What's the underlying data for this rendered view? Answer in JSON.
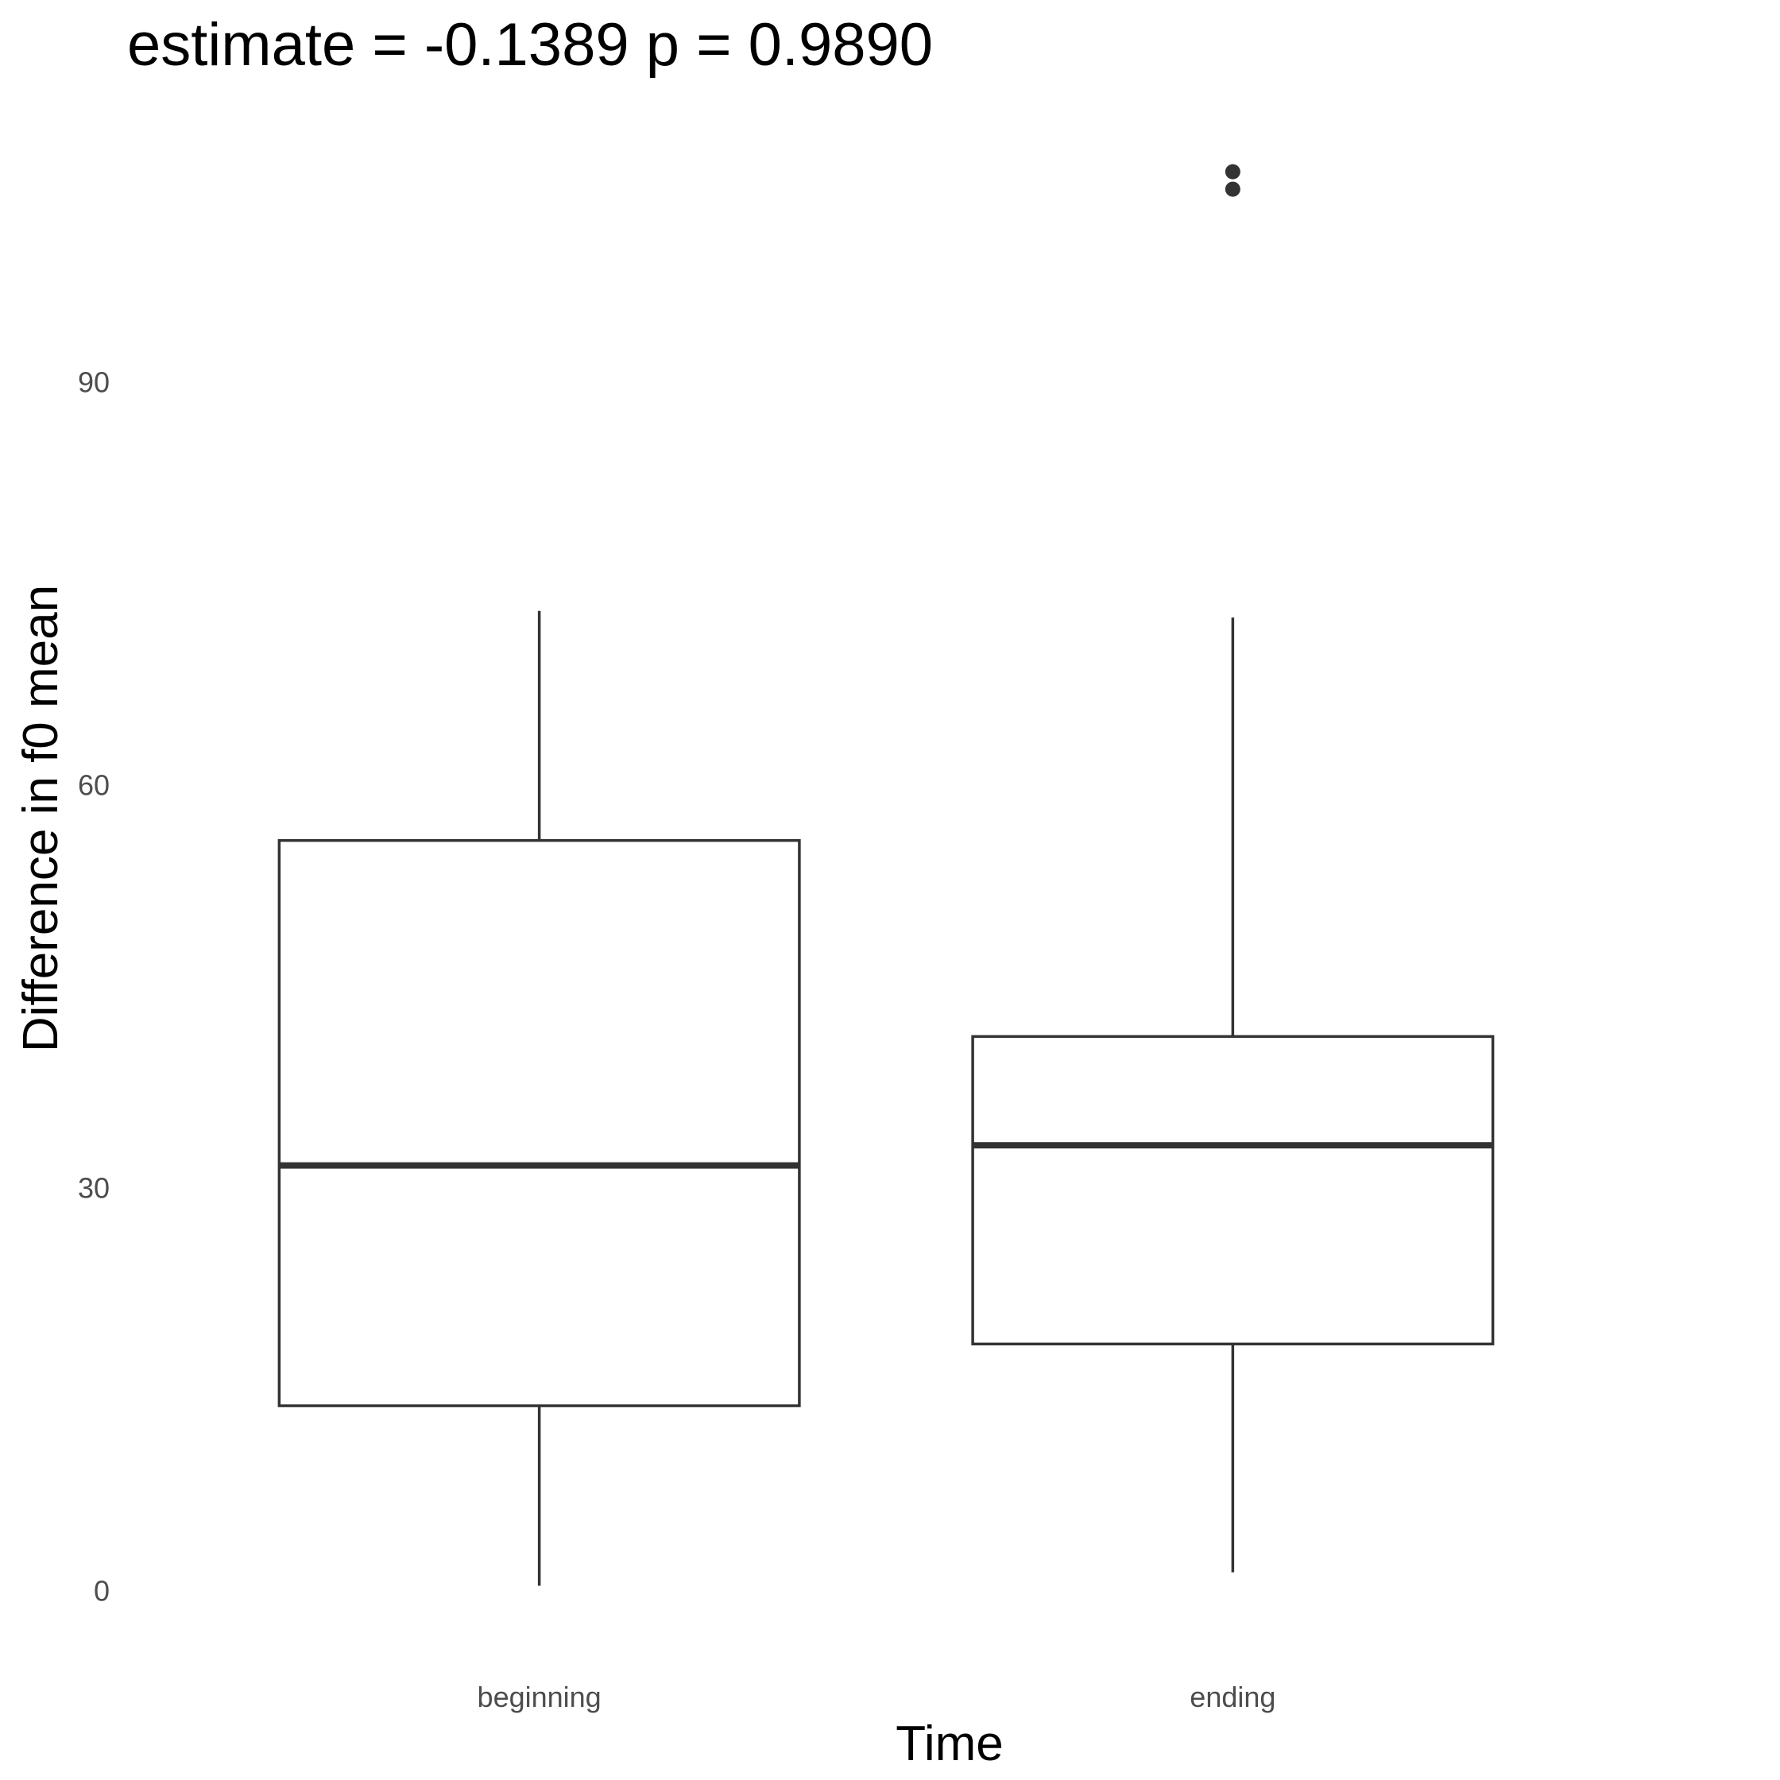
{
  "chart_data": {
    "type": "boxplot",
    "title": "estimate = -0.1389 p = 0.9890",
    "xlabel": "Time",
    "ylabel": "Difference in f0 mean",
    "categories": [
      "beginning",
      "ending"
    ],
    "y_ticks": [
      "0",
      "30",
      "60",
      "90"
    ],
    "y_tick_values": [
      0,
      30,
      60,
      90
    ],
    "ylim": [
      -4.6,
      110.5
    ],
    "grid": false,
    "legend": "none",
    "boxes": [
      {
        "category": "beginning",
        "whisker_low": 0.4,
        "q1": 13.8,
        "median": 31.7,
        "q3": 55.9,
        "whisker_high": 73.0,
        "outliers": []
      },
      {
        "category": "ending",
        "whisker_low": 1.4,
        "q1": 18.4,
        "median": 33.2,
        "q3": 41.3,
        "whisker_high": 72.5,
        "outliers": [
          104.4,
          105.7
        ]
      }
    ],
    "colors": {
      "box_stroke": "#333333",
      "box_fill": "#ffffff",
      "tick_text": "#4d4d4d",
      "title_text": "#000000"
    }
  }
}
